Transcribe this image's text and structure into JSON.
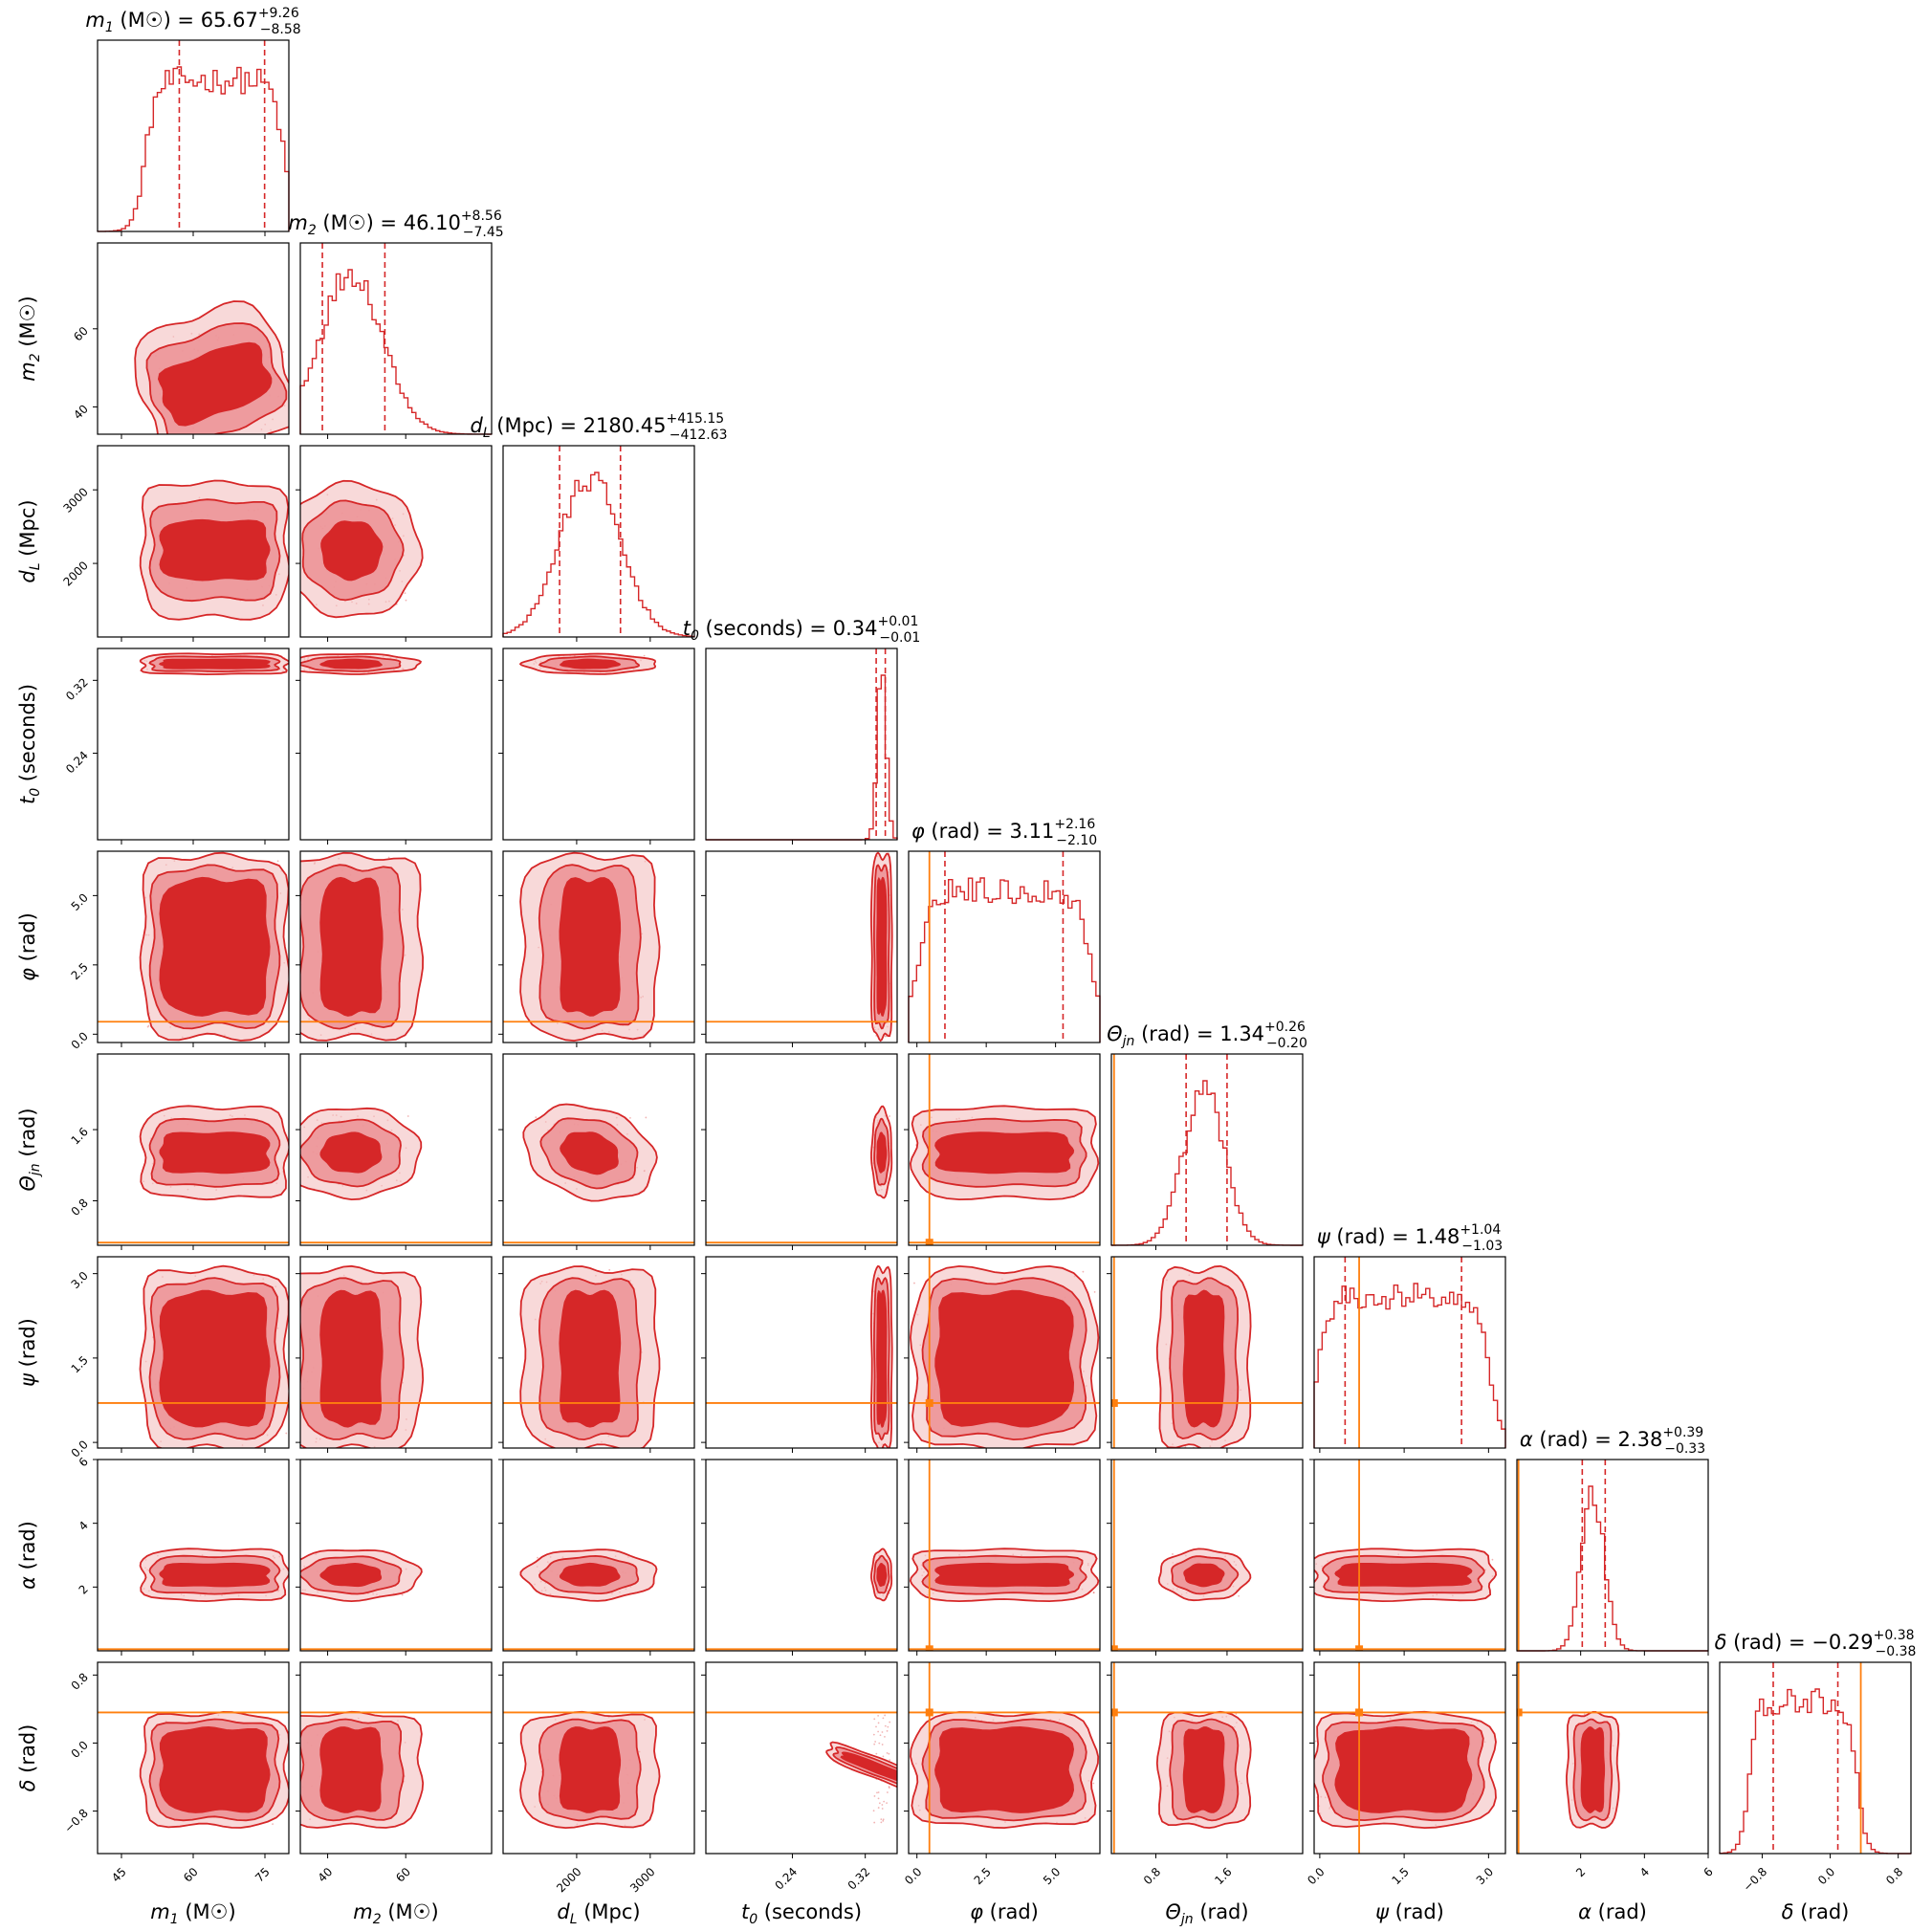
{
  "chart_data": {
    "type": "corner",
    "colors": {
      "posterior": "#d62728",
      "injection": "#ff7f0e",
      "axes": "#000000"
    },
    "parameters": [
      {
        "label_main": "m",
        "label_sub": "1",
        "label_unit": "(M☉)",
        "title_value": "65.67",
        "title_plus": "+9.26",
        "title_minus": "−8.58",
        "range": [
          40,
          80
        ],
        "quantiles": [
          57.09,
          65.67,
          74.93
        ],
        "ticks": [
          45,
          60,
          75
        ],
        "tick_labels": [
          "45",
          "60",
          "75"
        ],
        "injection": null
      },
      {
        "label_main": "m",
        "label_sub": "2",
        "label_unit": "(M☉)",
        "title_value": "46.10",
        "title_plus": "+8.56",
        "title_minus": "−7.45",
        "range": [
          33,
          82
        ],
        "quantiles": [
          38.65,
          46.1,
          54.66
        ],
        "ticks": [
          40,
          60
        ],
        "tick_labels": [
          "40",
          "60"
        ],
        "injection": null
      },
      {
        "label_main": "d",
        "label_sub": "L",
        "label_unit": "(Mpc)",
        "title_value": "2180.45",
        "title_plus": "+415.15",
        "title_minus": "−412.63",
        "range": [
          1000,
          3600
        ],
        "quantiles": [
          1767.82,
          2180.45,
          2595.6
        ],
        "ticks": [
          2000,
          3000
        ],
        "tick_labels": [
          "2000",
          "3000"
        ],
        "injection": null
      },
      {
        "label_main": "t",
        "label_sub": "0",
        "label_unit": "(seconds)",
        "title_value": "0.34",
        "title_plus": "+0.01",
        "title_minus": "−0.01",
        "range": [
          0.145,
          0.355
        ],
        "quantiles": [
          0.332,
          0.338,
          0.342
        ],
        "ticks": [
          0.24,
          0.32
        ],
        "tick_labels": [
          "0.24",
          "0.32"
        ],
        "injection": null
      },
      {
        "label_main": "φ",
        "label_sub": "",
        "label_unit": "(rad)",
        "title_value": "3.11",
        "title_plus": "+2.16",
        "title_minus": "−2.10",
        "range": [
          -0.3,
          6.6
        ],
        "quantiles": [
          1.01,
          3.11,
          5.27
        ],
        "ticks": [
          0,
          2.5,
          5
        ],
        "tick_labels": [
          "0.0",
          "2.5",
          "5.0"
        ],
        "injection": 0.45
      },
      {
        "label_main": "Θ",
        "label_sub": "jn",
        "label_unit": "(rad)",
        "title_value": "1.34",
        "title_plus": "+0.26",
        "title_minus": "−0.20",
        "range": [
          0.3,
          2.45
        ],
        "quantiles": [
          1.14,
          1.34,
          1.6
        ],
        "ticks": [
          0.8,
          1.6
        ],
        "tick_labels": [
          "0.8",
          "1.6"
        ],
        "injection": 0.33
      },
      {
        "label_main": "ψ",
        "label_sub": "",
        "label_unit": "(rad)",
        "title_value": "1.48",
        "title_plus": "+1.04",
        "title_minus": "−1.03",
        "range": [
          -0.1,
          3.3
        ],
        "quantiles": [
          0.45,
          1.48,
          2.52
        ],
        "ticks": [
          0,
          1.5,
          3
        ],
        "tick_labels": [
          "0.0",
          "1.5",
          "3.0"
        ],
        "injection": 0.7
      },
      {
        "label_main": "α",
        "label_sub": "",
        "label_unit": "(rad)",
        "title_value": "2.38",
        "title_plus": "+0.39",
        "title_minus": "−0.33",
        "range": [
          0,
          6
        ],
        "quantiles": [
          2.05,
          2.38,
          2.77
        ],
        "ticks": [
          2,
          4,
          6
        ],
        "tick_labels": [
          "2",
          "4",
          "6"
        ],
        "injection": 0.05
      },
      {
        "label_main": "δ",
        "label_sub": "",
        "label_unit": "(rad)",
        "title_value": "−0.29",
        "title_plus": "+0.38",
        "title_minus": "−0.38",
        "range": [
          -1.3,
          0.95
        ],
        "quantiles": [
          -0.67,
          -0.29,
          0.09
        ],
        "ticks": [
          -0.8,
          0,
          0.8
        ],
        "tick_labels": [
          "−0.8",
          "0.0",
          "0.8"
        ],
        "injection": 0.36
      }
    ]
  }
}
